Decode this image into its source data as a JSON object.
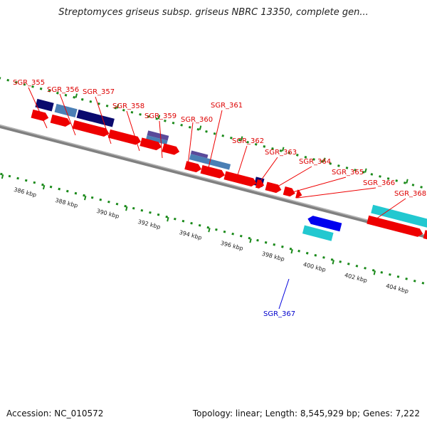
{
  "title": "Streptomyces griseus subsp. griseus NBRC 13350, complete gen...",
  "footer": {
    "accession": "Accession: NC_010572",
    "topology": "Topology: linear; Length: 8,545,929 bp; Genes: 7,222"
  },
  "colors": {
    "forward_gene": "#ff0000",
    "reverse_gene": "#0000ee",
    "cds_navy": "#0a0a6e",
    "cds_steel": "#4a7fb5",
    "cds_cyan": "#22c8d0",
    "cds_gray": "#666666",
    "backbone": "#777777",
    "tick": "#1a8a1a",
    "label_forward": "#dd0000",
    "label_reverse": "#0000cc"
  },
  "scale_labels": [
    "386 kbp",
    "388 kbp",
    "390 kbp",
    "392 kbp",
    "394 kbp",
    "396 kbp",
    "398 kbp",
    "400 kbp",
    "402 kbp",
    "404 kbp"
  ],
  "gene_labels": [
    "SGR_355",
    "SGR_356",
    "SGR_357",
    "SGR_358",
    "SGR_359",
    "SGR_360",
    "SGR_361",
    "SGR_362",
    "SGR_363",
    "SGR_364",
    "SGR_365",
    "SGR_366",
    "SGR_368",
    "SGR_367"
  ]
}
